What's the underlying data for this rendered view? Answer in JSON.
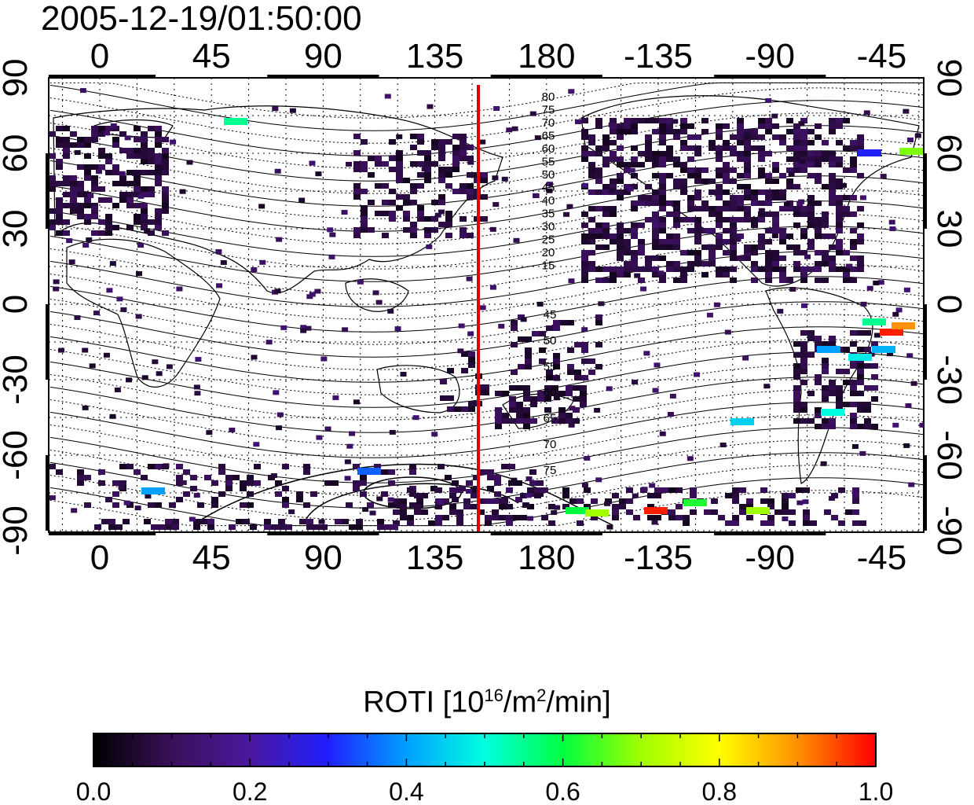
{
  "timestamp": "2005-12-19/01:50:00",
  "map": {
    "top_lon_labels": [
      "0",
      "45",
      "90",
      "135",
      "180",
      "-135",
      "-90",
      "-45"
    ],
    "bottom_lon_labels": [
      "0",
      "45",
      "90",
      "135",
      "180",
      "-135",
      "-90",
      "-45"
    ],
    "left_lat_labels": [
      "90",
      "60",
      "30",
      "0",
      "-30",
      "-60",
      "-90"
    ],
    "right_lat_labels": [
      "90",
      "60",
      "30",
      "0",
      "-30",
      "-60",
      "-90"
    ],
    "terminator_longitude": 152,
    "terminator_color": "#e00000",
    "contour_labels_north": [
      "80",
      "75",
      "70",
      "65",
      "60",
      "55",
      "50",
      "45",
      "40",
      "35",
      "30",
      "25",
      "20",
      "15"
    ],
    "contour_labels_south": [
      "45",
      "50",
      "55",
      "60",
      "65",
      "70",
      "75"
    ]
  },
  "colorbar": {
    "title_main": "ROTI  [10",
    "title_sup1": "16",
    "title_mid": "/m",
    "title_sup2": "2",
    "title_end": "/min]",
    "tick_labels": [
      "0.0",
      "0.2",
      "0.4",
      "0.6",
      "0.8",
      "1.0"
    ],
    "min": 0.0,
    "max": 1.0,
    "stops": [
      "#000000",
      "#3a0f5a",
      "#4a18a0",
      "#2020ff",
      "#00a0ff",
      "#00ffe0",
      "#00ff40",
      "#a0ff00",
      "#ffff00",
      "#ff9000",
      "#ff0000"
    ]
  }
}
